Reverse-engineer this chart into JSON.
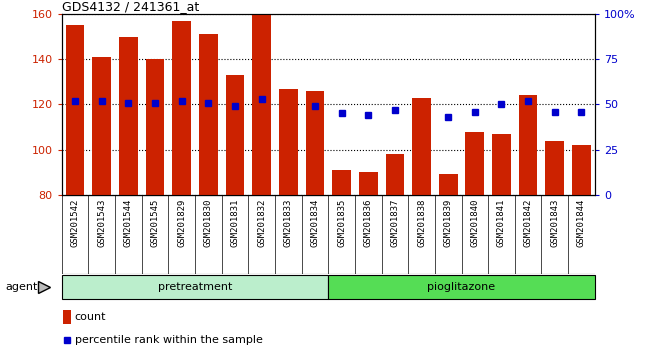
{
  "title": "GDS4132 / 241361_at",
  "categories": [
    "GSM201542",
    "GSM201543",
    "GSM201544",
    "GSM201545",
    "GSM201829",
    "GSM201830",
    "GSM201831",
    "GSM201832",
    "GSM201833",
    "GSM201834",
    "GSM201835",
    "GSM201836",
    "GSM201837",
    "GSM201838",
    "GSM201839",
    "GSM201840",
    "GSM201841",
    "GSM201842",
    "GSM201843",
    "GSM201844"
  ],
  "counts": [
    155,
    141,
    150,
    140,
    157,
    151,
    133,
    160,
    127,
    126,
    91,
    90,
    98,
    123,
    89,
    108,
    107,
    124,
    104,
    102
  ],
  "percentile": [
    52,
    52,
    51,
    51,
    52,
    51,
    49,
    53,
    null,
    49,
    45,
    44,
    47,
    null,
    43,
    46,
    50,
    52,
    46,
    46
  ],
  "n_pretreatment": 10,
  "bar_color": "#cc2200",
  "dot_color": "#0000cc",
  "ylim_left": [
    80,
    160
  ],
  "ylim_right": [
    0,
    100
  ],
  "yticks_left": [
    80,
    100,
    120,
    140,
    160
  ],
  "yticks_right": [
    0,
    25,
    50,
    75,
    100
  ],
  "ytick_labels_right": [
    "0",
    "25",
    "50",
    "75",
    "100%"
  ],
  "pretreatment_color": "#bbeecc",
  "pioglitazone_color": "#55dd55",
  "agent_label": "agent",
  "pretreatment_label": "pretreatment",
  "pioglitazone_label": "pioglitazone",
  "legend_count": "count",
  "legend_percentile": "percentile rank within the sample",
  "tick_bg_color": "#cccccc",
  "plot_bg_color": "#ffffff",
  "fig_bg_color": "#ffffff"
}
